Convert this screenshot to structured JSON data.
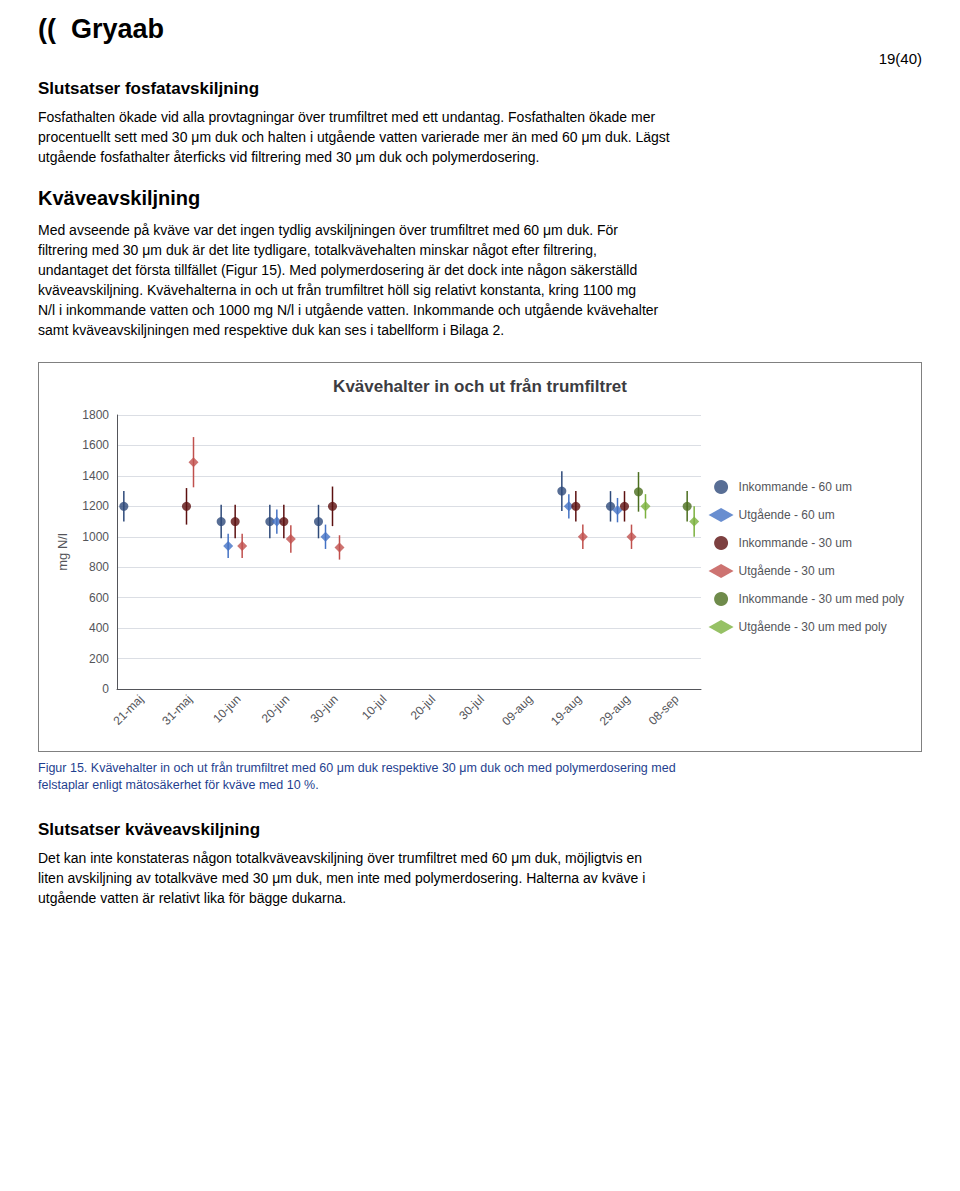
{
  "logo": "((  Gryaab",
  "page_number": "19(40)",
  "heading1": "Slutsatser fosfatavskiljning",
  "para1_lines": [
    "Fosfathalten ökade vid alla provtagningar över trumfiltret med ett undantag. Fosfathalten ökade mer",
    "procentuellt sett med 30 μm duk och halten i utgående vatten varierade mer än med 60 μm duk. Lägst",
    "utgående fosfathalter återficks vid filtrering med 30 μm duk och polymerdosering."
  ],
  "heading2": "Kväveavskiljning",
  "para2_lines": [
    "Med avseende på kväve var det ingen tydlig avskiljningen över trumfiltret med 60 μm duk. För",
    "filtrering med 30 μm duk är det lite tydligare, totalkvävehalten minskar något efter filtrering,",
    "undantaget det första tillfället (Figur 15). Med polymerdosering är det dock inte någon säkerställd",
    "kväveavskiljning. Kvävehalterna in och ut från trumfiltret höll sig relativt konstanta, kring 1100 mg",
    "N/l i inkommande vatten och 1000 mg N/l i utgående vatten. Inkommande och utgående kvävehalter",
    "samt kväveavskiljningen med respektive duk kan ses i tabellform i Bilaga 2."
  ],
  "fig_caption_lines": [
    "Figur 15. Kvävehalter in och ut från trumfiltret med 60 μm duk respektive 30 μm duk och med polymerdosering med",
    "felstaplar enligt mätosäkerhet för kväve med 10 %."
  ],
  "caption_color": "#1F3F8F",
  "heading3": "Slutsatser kväveavskiljning",
  "para3_lines": [
    "Det kan inte konstateras någon totalkväveavskiljning över trumfiltret med 60 μm duk, möjligtvis en",
    "liten avskiljning av totalkväve med 30 μm duk, men inte med polymerdosering. Halterna av kväve i",
    "utgående vatten är relativt lika för bägge dukarna."
  ],
  "chart_data": {
    "type": "scatter",
    "title": "Kvävehalter in och ut från trumfiltret",
    "ylabel": "mg N/l",
    "categories": [
      "21-maj",
      "31-maj",
      "10-jun",
      "20-jun",
      "30-jun",
      "10-jul",
      "20-jul",
      "30-jul",
      "09-aug",
      "19-aug",
      "29-aug",
      "08-sep"
    ],
    "ylim": [
      0,
      1800
    ],
    "yticks": [
      0,
      200,
      400,
      600,
      800,
      1000,
      1200,
      1400,
      1600,
      1800
    ],
    "grid": true,
    "legend": "right",
    "series": [
      {
        "name": "Inkommande - 60 um",
        "color": "#2E4A7A",
        "marker": "circle",
        "values": [
          1200,
          null,
          1100,
          1100,
          1100,
          null,
          null,
          null,
          null,
          1300,
          1200,
          null
        ],
        "errors": [
          100,
          null,
          110,
          110,
          110,
          null,
          null,
          null,
          null,
          130,
          100,
          null
        ]
      },
      {
        "name": "Utgående - 60 um",
        "color": "#4472C4",
        "marker": "diamond",
        "values": [
          null,
          null,
          940,
          1100,
          1000,
          null,
          null,
          null,
          null,
          1200,
          1175,
          null
        ],
        "errors": [
          null,
          null,
          80,
          80,
          80,
          null,
          null,
          null,
          null,
          80,
          80,
          null
        ]
      },
      {
        "name": "Inkommande - 30 um",
        "color": "#5C1010",
        "marker": "circle",
        "values": [
          null,
          1200,
          1100,
          1100,
          1200,
          null,
          null,
          null,
          null,
          1200,
          1200,
          null
        ],
        "errors": [
          null,
          120,
          110,
          110,
          130,
          null,
          null,
          null,
          null,
          100,
          100,
          null
        ]
      },
      {
        "name": "Utgående - 30 um",
        "color": "#C0504D",
        "marker": "diamond",
        "values": [
          null,
          1490,
          940,
          985,
          930,
          null,
          null,
          null,
          null,
          1000,
          1000,
          null
        ],
        "errors": [
          null,
          165,
          80,
          90,
          80,
          null,
          null,
          null,
          null,
          80,
          80,
          null
        ]
      },
      {
        "name": "Inkommande - 30 um med poly",
        "color": "#4B6E1E",
        "marker": "circle",
        "values": [
          null,
          null,
          null,
          null,
          null,
          null,
          null,
          null,
          null,
          null,
          1295,
          1200
        ],
        "errors": [
          null,
          null,
          null,
          null,
          null,
          null,
          null,
          null,
          null,
          null,
          130,
          100
        ]
      },
      {
        "name": "Utgående - 30 um med poly",
        "color": "#7CB13F",
        "marker": "diamond",
        "values": [
          null,
          null,
          null,
          null,
          null,
          null,
          null,
          null,
          null,
          null,
          1200,
          1100
        ],
        "errors": [
          null,
          null,
          null,
          null,
          null,
          null,
          null,
          null,
          null,
          null,
          80,
          100
        ]
      }
    ]
  }
}
